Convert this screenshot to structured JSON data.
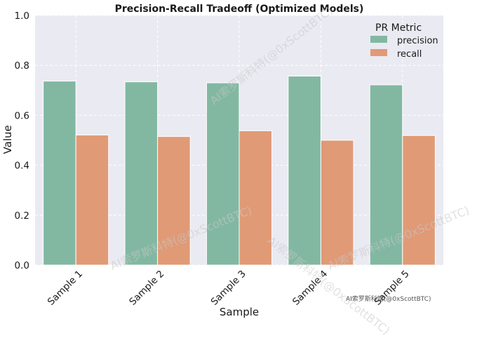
{
  "chart_data": {
    "type": "bar",
    "title": "Precision-Recall Tradeoff (Optimized Models)",
    "xlabel": "Sample",
    "ylabel": "Value",
    "ylim": [
      0,
      1.0
    ],
    "yticks": [
      "0.0",
      "0.2",
      "0.4",
      "0.6",
      "0.8",
      "1.0"
    ],
    "categories": [
      "Sample 1",
      "Sample 2",
      "Sample 3",
      "Sample 4",
      "Sample 5"
    ],
    "legend": {
      "title": "PR Metric",
      "placement": "top-right"
    },
    "grid": true,
    "series": [
      {
        "name": "precision",
        "color": "#82b8a2",
        "values": [
          0.737,
          0.734,
          0.73,
          0.757,
          0.722
        ]
      },
      {
        "name": "recall",
        "color": "#e09a76",
        "values": [
          0.521,
          0.515,
          0.538,
          0.5,
          0.519
        ]
      }
    ]
  },
  "watermark": {
    "text": "AI索罗斯科特(@0xScottBTC)"
  },
  "colors": {
    "plot_background": "#eaeaf2",
    "grid": "#ffffff"
  }
}
